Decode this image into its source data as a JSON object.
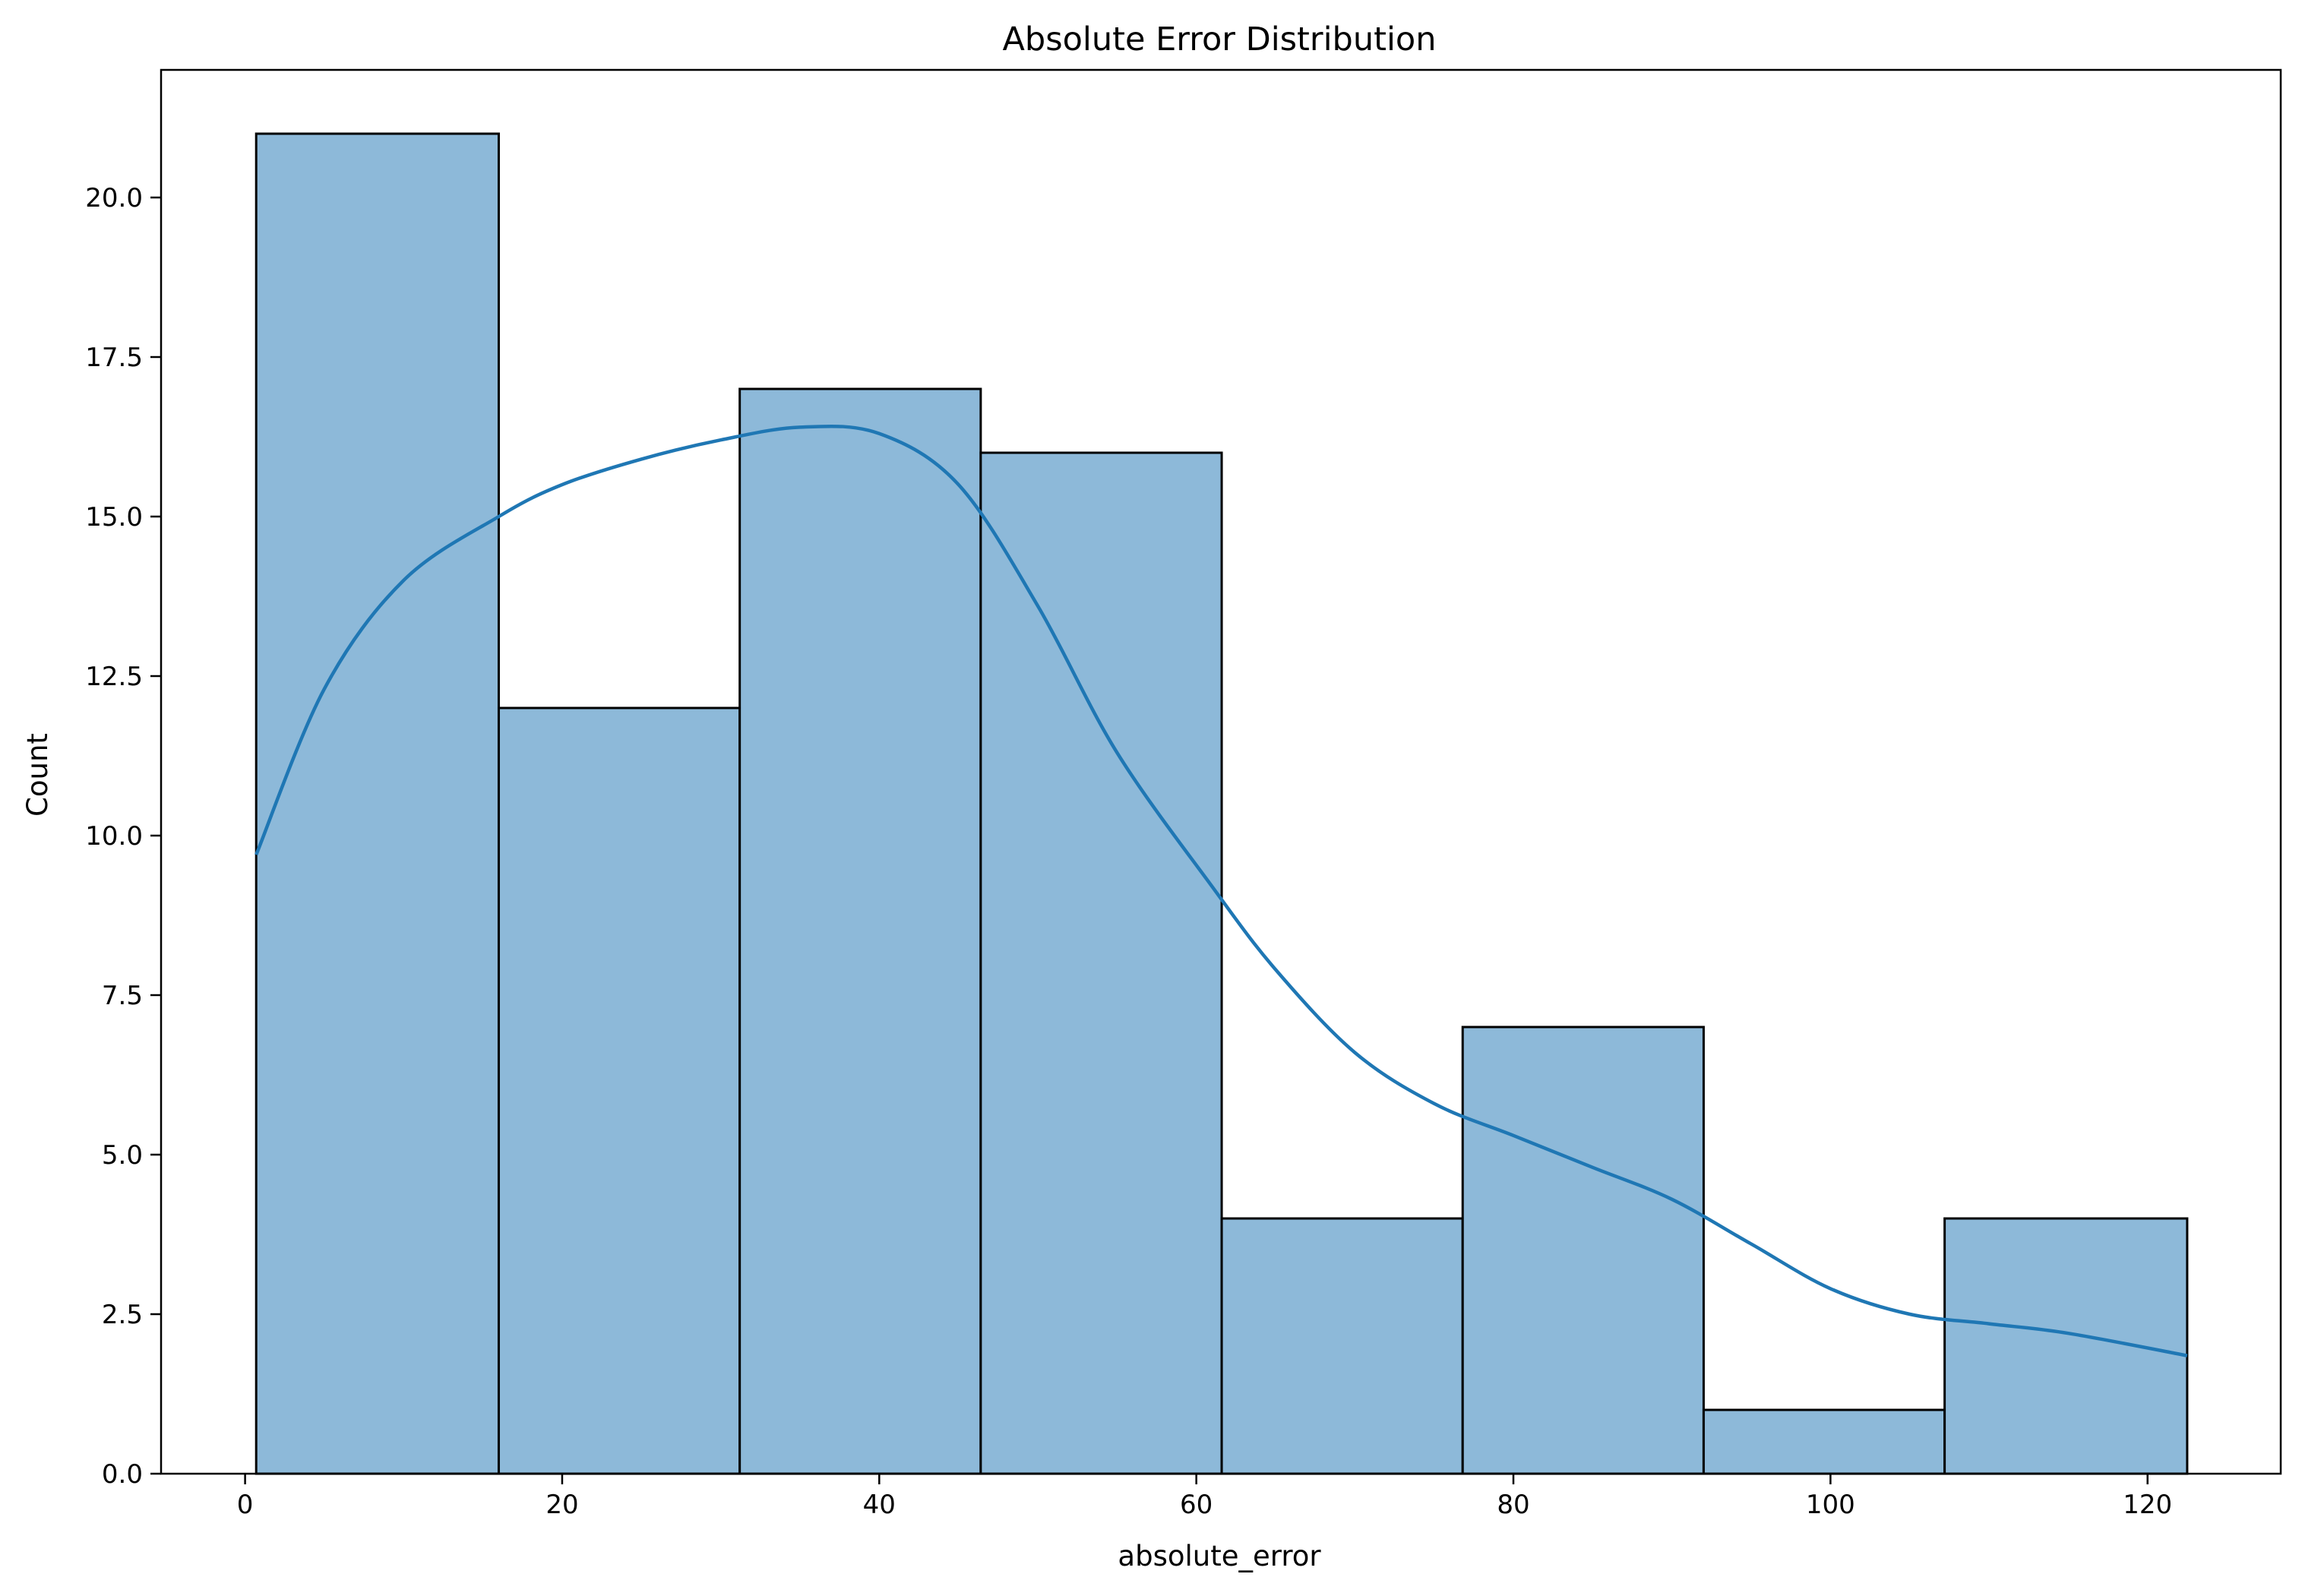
{
  "colors": {
    "bar_fill": "#8db9d9",
    "bar_edge": "#000000",
    "kde_line": "#1f77b4",
    "axes": "#000000",
    "background": "#ffffff"
  },
  "chart_data": {
    "type": "bar",
    "subtype": "histogram-with-kde",
    "title": "Absolute Error Distribution",
    "xlabel": "absolute_error",
    "ylabel": "Count",
    "xlim": [
      -5.3,
      128.4
    ],
    "ylim": [
      0,
      22
    ],
    "x_ticks": [
      0,
      20,
      40,
      60,
      80,
      100,
      120
    ],
    "x_tick_labels": [
      "0",
      "20",
      "40",
      "60",
      "80",
      "100",
      "120"
    ],
    "y_ticks": [
      0,
      2.5,
      5,
      7.5,
      10,
      12.5,
      15,
      17.5,
      20
    ],
    "y_tick_labels": [
      "0.0",
      "2.5",
      "5.0",
      "7.5",
      "10.0",
      "12.5",
      "15.0",
      "17.5",
      "20.0"
    ],
    "grid": false,
    "legend": "none",
    "bins": [
      {
        "x0": 0.7,
        "x1": 16.0,
        "count": 21
      },
      {
        "x0": 16.0,
        "x1": 31.2,
        "count": 12
      },
      {
        "x0": 31.2,
        "x1": 46.4,
        "count": 17
      },
      {
        "x0": 46.4,
        "x1": 61.6,
        "count": 16
      },
      {
        "x0": 61.6,
        "x1": 76.8,
        "count": 4
      },
      {
        "x0": 76.8,
        "x1": 92.0,
        "count": 7
      },
      {
        "x0": 92.0,
        "x1": 107.2,
        "count": 1
      },
      {
        "x0": 107.2,
        "x1": 122.5,
        "count": 4
      }
    ],
    "kde": {
      "x": [
        0.7,
        5,
        10,
        16,
        20,
        25,
        30,
        35,
        40,
        45,
        50,
        55,
        61,
        65,
        70,
        75,
        80,
        85,
        90,
        95,
        100,
        105,
        110,
        115,
        122.5
      ],
      "y": [
        9.7,
        12.3,
        14.0,
        15.0,
        15.5,
        15.9,
        16.2,
        16.4,
        16.3,
        15.5,
        13.6,
        11.3,
        9.2,
        7.9,
        6.6,
        5.8,
        5.3,
        4.8,
        4.3,
        3.6,
        2.9,
        2.5,
        2.35,
        2.2,
        1.85
      ]
    }
  }
}
